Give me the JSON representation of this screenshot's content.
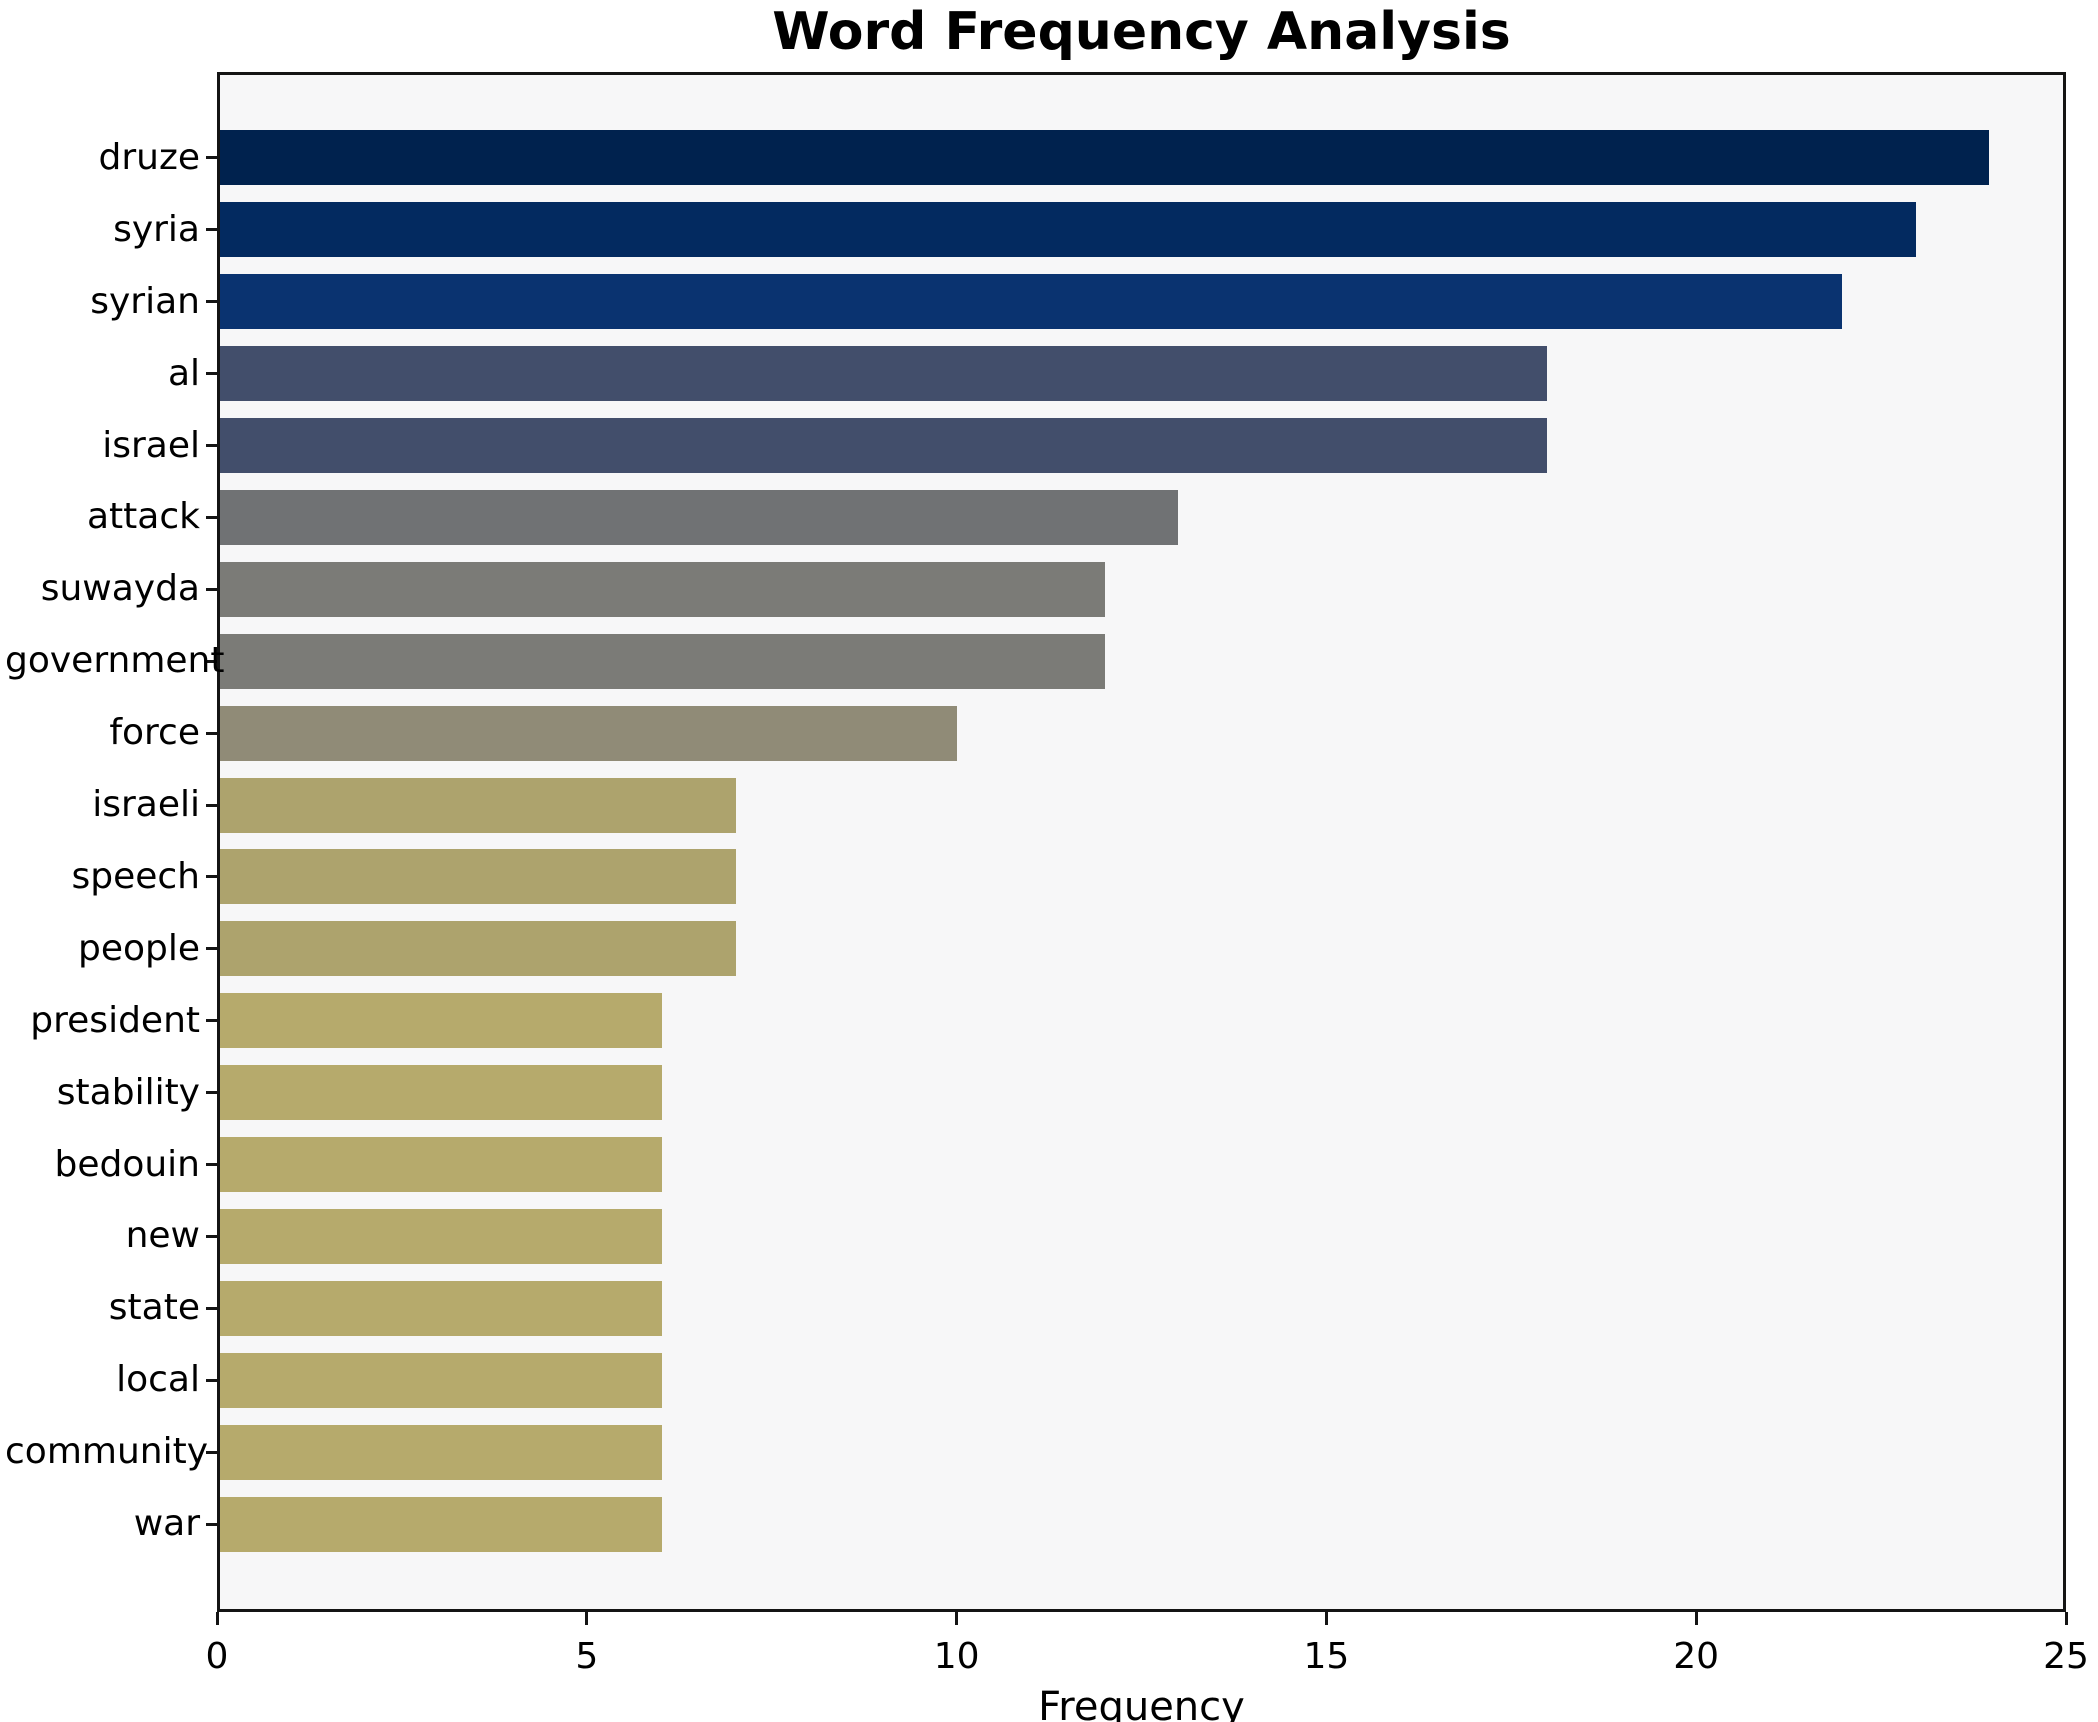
{
  "chart_data": {
    "type": "bar",
    "orientation": "horizontal",
    "title": "Word Frequency Analysis",
    "xlabel": "Frequency",
    "ylabel": "",
    "xlim": [
      0,
      25
    ],
    "xticks": [
      0,
      5,
      10,
      15,
      20,
      25
    ],
    "grid": false,
    "legend": "none",
    "plot_background": "#f7f7f8",
    "figure_background": "#ffffff",
    "colormap_note": "cividis-style gradient, darkest navy for highest frequency, khaki for lowest",
    "categories": [
      "druze",
      "syria",
      "syrian",
      "al",
      "israel",
      "attack",
      "suwayda",
      "government",
      "force",
      "israeli",
      "speech",
      "people",
      "president",
      "stability",
      "bedouin",
      "new",
      "state",
      "local",
      "community",
      "war"
    ],
    "values": [
      24,
      23,
      22,
      18,
      18,
      13,
      12,
      12,
      10,
      7,
      7,
      7,
      6,
      6,
      6,
      6,
      6,
      6,
      6,
      6
    ],
    "colors": [
      "#00224e",
      "#032a60",
      "#0a3370",
      "#424e6b",
      "#424e6b",
      "#707274",
      "#7b7b77",
      "#7b7b77",
      "#908b77",
      "#ada36d",
      "#ada36d",
      "#ada36d",
      "#b6aa6c",
      "#b6aa6c",
      "#b6aa6c",
      "#b6aa6c",
      "#b6aa6c",
      "#b6aa6c",
      "#b6aa6c",
      "#b6aa6c"
    ]
  }
}
